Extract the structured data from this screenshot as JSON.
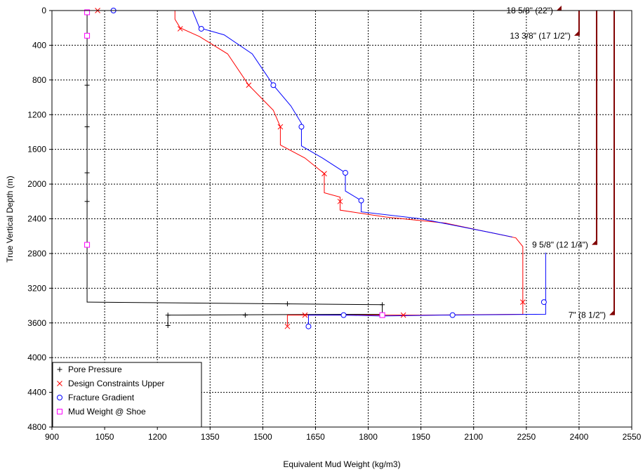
{
  "chart_data": {
    "type": "line",
    "xlabel": "Equivalent Mud Weight (kg/m3)",
    "ylabel": "True Vertical Depth (m)",
    "xlim": [
      900,
      2550
    ],
    "ylim": [
      0,
      4800
    ],
    "y_inverted": true,
    "grid": true,
    "legend_position": "bottom-left",
    "x_ticks": [
      "900",
      "1050",
      "1200",
      "1350",
      "1500",
      "1650",
      "1800",
      "1950",
      "2100",
      "2250",
      "2400",
      "2550"
    ],
    "y_ticks": [
      "0",
      "400",
      "800",
      "1200",
      "1600",
      "2000",
      "2400",
      "2800",
      "3200",
      "3600",
      "4000",
      "4400",
      "4800"
    ],
    "series": [
      {
        "name": "Pore Pressure",
        "color": "#000000",
        "marker": "plus",
        "line": [
          [
            1000,
            0
          ],
          [
            1000,
            3360
          ],
          [
            1570,
            3380
          ],
          [
            1840,
            3390
          ],
          [
            1840,
            3500
          ],
          [
            1230,
            3510
          ],
          [
            1230,
            3630
          ]
        ],
        "points": [
          [
            1000,
            860
          ],
          [
            1000,
            1340
          ],
          [
            1000,
            1870
          ],
          [
            1000,
            2200
          ],
          [
            1570,
            3380
          ],
          [
            1840,
            3390
          ],
          [
            1450,
            3510
          ],
          [
            1230,
            3510
          ],
          [
            1230,
            3630
          ]
        ]
      },
      {
        "name": "Design Constraints Upper",
        "color": "#ff0000",
        "marker": "x",
        "line": [
          [
            1010,
            0
          ],
          [
            1250,
            0
          ],
          [
            1250,
            100
          ],
          [
            1265,
            200
          ],
          [
            1320,
            300
          ],
          [
            1400,
            500
          ],
          [
            1460,
            860
          ],
          [
            1530,
            1150
          ],
          [
            1550,
            1340
          ],
          [
            1550,
            1550
          ],
          [
            1620,
            1700
          ],
          [
            1675,
            1880
          ],
          [
            1675,
            2100
          ],
          [
            1720,
            2150
          ],
          [
            1720,
            2300
          ],
          [
            1850,
            2380
          ],
          [
            2020,
            2450
          ],
          [
            2220,
            2620
          ],
          [
            2240,
            2720
          ],
          [
            2240,
            3500
          ],
          [
            1950,
            3510
          ],
          [
            1640,
            3510
          ],
          [
            1620,
            3510
          ],
          [
            1570,
            3510
          ],
          [
            1570,
            3630
          ]
        ],
        "points": [
          [
            1030,
            0
          ],
          [
            1265,
            210
          ],
          [
            1460,
            860
          ],
          [
            1550,
            1340
          ],
          [
            1675,
            1880
          ],
          [
            1720,
            2200
          ],
          [
            2240,
            3360
          ],
          [
            1900,
            3510
          ],
          [
            1620,
            3510
          ],
          [
            1570,
            3640
          ]
        ]
      },
      {
        "name": "Fracture Gradient",
        "color": "#0000ff",
        "marker": "circle",
        "line": [
          [
            1080,
            0
          ],
          [
            1300,
            0
          ],
          [
            1320,
            200
          ],
          [
            1390,
            280
          ],
          [
            1470,
            500
          ],
          [
            1530,
            860
          ],
          [
            1580,
            1100
          ],
          [
            1610,
            1300
          ],
          [
            1610,
            1560
          ],
          [
            1670,
            1700
          ],
          [
            1735,
            1870
          ],
          [
            1735,
            2080
          ],
          [
            1780,
            2190
          ],
          [
            1780,
            2320
          ],
          [
            1950,
            2400
          ],
          [
            2150,
            2560
          ],
          [
            2210,
            2610
          ]
        ],
        "line2": [
          [
            2305,
            2790
          ],
          [
            2305,
            3500
          ],
          [
            2010,
            3510
          ],
          [
            1840,
            3520
          ],
          [
            1730,
            3510
          ],
          [
            1630,
            3510
          ],
          [
            1630,
            3640
          ]
        ],
        "points": [
          [
            1075,
            0
          ],
          [
            1325,
            210
          ],
          [
            1530,
            860
          ],
          [
            1610,
            1340
          ],
          [
            1735,
            1870
          ],
          [
            1780,
            2190
          ],
          [
            2300,
            3360
          ],
          [
            2040,
            3510
          ],
          [
            1730,
            3510
          ],
          [
            1630,
            3640
          ]
        ]
      },
      {
        "name": "Mud Weight @ Shoe",
        "color": "#ff00ff",
        "marker": "square",
        "points": [
          [
            1000,
            20
          ],
          [
            1000,
            290
          ],
          [
            1000,
            2700
          ],
          [
            1840,
            3510
          ]
        ]
      }
    ],
    "casings": [
      {
        "label": "18 5/8\" (22\")",
        "x": 2350,
        "depth": 0
      },
      {
        "label": "13 3/8\" (17 1/2\")",
        "x": 2400,
        "depth": 290
      },
      {
        "label": "9 5/8\" (12 1/4\")",
        "x": 2450,
        "depth": 2700
      },
      {
        "label": "7\" (8 1/2\")",
        "x": 2500,
        "depth": 3510
      }
    ],
    "casing_color": "#800000"
  }
}
